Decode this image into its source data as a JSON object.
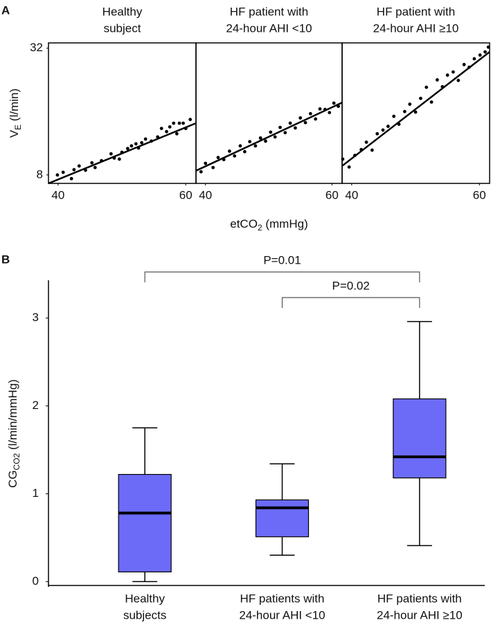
{
  "chart_data": [
    {
      "type": "scatter",
      "panel": "A",
      "title": [
        "Healthy",
        "subject"
      ],
      "ylabel": {
        "main": "V",
        "sub": "E",
        "rest": " (l/min)"
      },
      "x": [
        39.9,
        40.8,
        42.1,
        42.5,
        43.3,
        44.3,
        45.3,
        45.8,
        46.8,
        48.3,
        48.8,
        49.6,
        50.0,
        50.9,
        51.5,
        52.2,
        52.6,
        53.1,
        53.7,
        54.6,
        55.6,
        56.2,
        57.0,
        57.5,
        58.1,
        58.6,
        59.0,
        59.6,
        60.0,
        60.7
      ],
      "y": [
        8.0,
        8.5,
        7.3,
        9.0,
        9.7,
        8.9,
        10.3,
        9.4,
        10.7,
        12.0,
        11.2,
        11.0,
        12.3,
        13.0,
        13.5,
        13.9,
        13.1,
        14.1,
        14.8,
        14.4,
        15.2,
        16.8,
        16.2,
        17.1,
        17.8,
        15.8,
        17.8,
        17.8,
        16.8,
        18.5
      ],
      "fit": {
        "x": [
          38.5,
          61.6
        ],
        "y": [
          6.4,
          17.8
        ]
      },
      "xlim": [
        38.5,
        61.6
      ],
      "ylim": [
        6.4,
        33
      ],
      "xticks": [
        40,
        60
      ],
      "yticks": [
        8,
        32
      ],
      "color": "#000000"
    },
    {
      "type": "scatter",
      "title": [
        "HF patient with",
        "24-hour AHI <10"
      ],
      "xlabel": {
        "main": "etCO",
        "sub": "2",
        "rest": " (mmHg)"
      },
      "x": [
        39.3,
        40.0,
        41.2,
        42.0,
        42.9,
        43.8,
        44.6,
        45.5,
        46.2,
        47.0,
        47.9,
        48.7,
        49.5,
        50.3,
        51.0,
        51.8,
        52.6,
        53.4,
        54.2,
        55.0,
        55.8,
        56.6,
        57.4,
        58.1,
        58.9,
        59.6,
        60.3,
        61.0
      ],
      "y": [
        8.6,
        10.2,
        9.4,
        11.3,
        10.9,
        12.5,
        11.6,
        13.5,
        12.4,
        14.3,
        13.5,
        15.0,
        14.4,
        16.1,
        15.2,
        17.0,
        16.0,
        17.8,
        16.9,
        18.8,
        17.9,
        19.6,
        18.6,
        20.5,
        20.4,
        19.8,
        21.6,
        21.0
      ],
      "fit": {
        "x": [
          38.5,
          61.6
        ],
        "y": [
          8.8,
          21.7
        ]
      },
      "xlim": [
        38.5,
        61.6
      ],
      "ylim": [
        6.4,
        33
      ],
      "xticks": [
        40,
        60
      ],
      "color": "#000000"
    },
    {
      "type": "scatter",
      "title": [
        "HF patient with",
        "24-hour AHI ≥10"
      ],
      "x": [
        38.6,
        39.6,
        40.5,
        41.5,
        42.3,
        43.2,
        44.0,
        44.9,
        45.7,
        46.6,
        47.4,
        48.3,
        49.1,
        50.0,
        50.8,
        51.7,
        52.5,
        53.4,
        54.2,
        55.0,
        55.9,
        56.7,
        57.6,
        58.4,
        59.2,
        60.1,
        60.9,
        61.4
      ],
      "y": [
        11.0,
        9.5,
        11.7,
        12.8,
        14.2,
        12.7,
        15.8,
        16.5,
        17.2,
        19.1,
        17.6,
        20.0,
        21.4,
        19.9,
        22.5,
        24.6,
        21.8,
        26.0,
        24.7,
        26.9,
        27.5,
        25.9,
        28.9,
        28.4,
        30.0,
        30.7,
        31.3,
        32.2
      ],
      "fit": {
        "x": [
          38.5,
          61.6
        ],
        "y": [
          9.7,
          31.3
        ]
      },
      "xlim": [
        38.5,
        61.6
      ],
      "ylim": [
        6.4,
        33
      ],
      "xticks": [
        40,
        60
      ],
      "color": "#000000"
    },
    {
      "type": "box",
      "panel": "B",
      "ylabel": {
        "main": "CG",
        "sub": "CO2",
        "rest": " (l/min/mmHg)"
      },
      "categories": [
        [
          "Healthy",
          "subjects"
        ],
        [
          "HF patients with",
          "24-hour AHI <10"
        ],
        [
          "HF patients with",
          "24-hour AHI ≥10"
        ]
      ],
      "min": [
        0,
        0.3,
        0.41
      ],
      "q1": [
        0.11,
        0.51,
        1.18
      ],
      "median": [
        0.78,
        0.84,
        1.42
      ],
      "q3": [
        1.22,
        0.93,
        2.08
      ],
      "max": [
        1.75,
        1.34,
        2.96
      ],
      "ylim": [
        -0.06,
        3.43
      ],
      "yticks": [
        0,
        1,
        2,
        3
      ],
      "color": "#6b6bf7",
      "annotations": [
        {
          "text": "P=0.01",
          "groups": [
            0,
            2
          ]
        },
        {
          "text": "P=0.02",
          "groups": [
            1,
            2
          ]
        }
      ]
    }
  ]
}
